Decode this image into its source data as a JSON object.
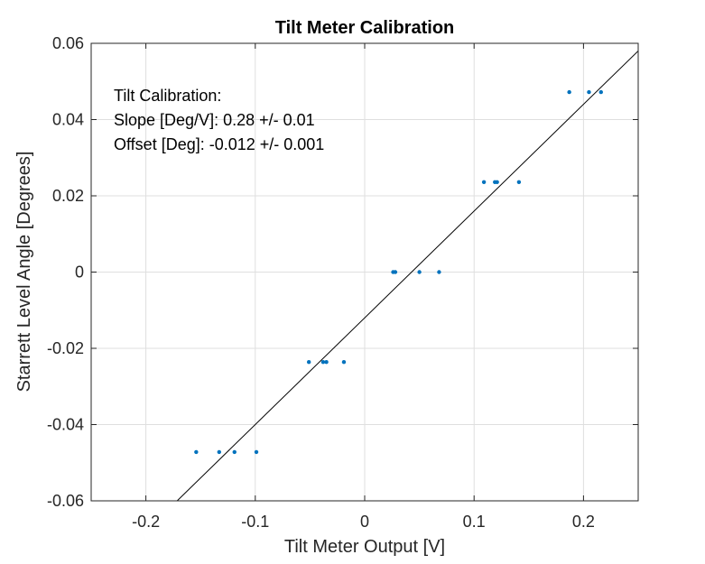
{
  "chart_data": {
    "type": "scatter",
    "title": "Tilt Meter Calibration",
    "xlabel": "Tilt Meter Output [V]",
    "ylabel": "Starrett Level Angle [Degrees]",
    "xlim": [
      -0.25,
      0.25
    ],
    "ylim": [
      -0.06,
      0.06
    ],
    "xticks": [
      -0.2,
      -0.1,
      0,
      0.1,
      0.2
    ],
    "xtick_labels": [
      "-0.2",
      "-0.1",
      "0",
      "0.1",
      "0.2"
    ],
    "yticks": [
      -0.06,
      -0.04,
      -0.02,
      0,
      0.02,
      0.04,
      0.06
    ],
    "ytick_labels": [
      "-0.06",
      "-0.04",
      "-0.02",
      "0",
      "0.02",
      "0.04",
      "0.06"
    ],
    "grid": true,
    "series": [
      {
        "color": "#0072BD",
        "points": [
          [
            -0.154,
            -0.0472
          ],
          [
            -0.133,
            -0.0472
          ],
          [
            -0.119,
            -0.0472
          ],
          [
            -0.099,
            -0.0472
          ],
          [
            -0.051,
            -0.0236
          ],
          [
            -0.038,
            -0.0236
          ],
          [
            -0.035,
            -0.0236
          ],
          [
            -0.019,
            -0.0236
          ],
          [
            0.026,
            0.0
          ],
          [
            0.028,
            0.0
          ],
          [
            0.05,
            0.0
          ],
          [
            0.068,
            0.0
          ],
          [
            0.109,
            0.0236
          ],
          [
            0.119,
            0.0236
          ],
          [
            0.121,
            0.0236
          ],
          [
            0.141,
            0.0236
          ],
          [
            0.187,
            0.0472
          ],
          [
            0.205,
            0.0472
          ],
          [
            0.216,
            0.0472
          ]
        ]
      },
      {
        "type": "line",
        "color": "#000000",
        "slope": 0.28,
        "intercept": -0.012
      }
    ],
    "annotation": [
      "Tilt Calibration:",
      "Slope [Deg/V]: 0.28 +/- 0.01",
      "Offset [Deg]: -0.012 +/- 0.001"
    ]
  }
}
